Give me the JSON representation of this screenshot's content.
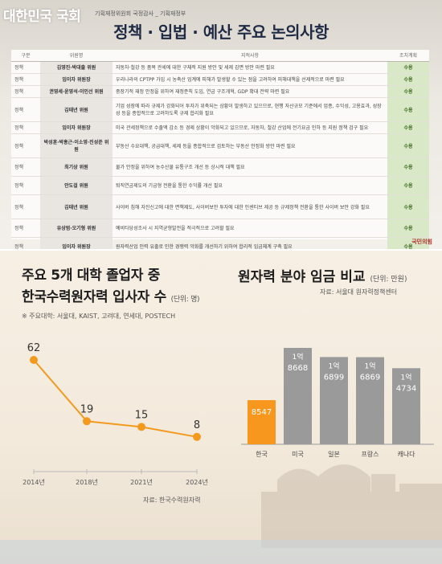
{
  "top": {
    "watermark": "대한민국 국회",
    "subtitle": "기획재정위원회 국정감사 _ 기획재정부",
    "title": "정책 · 입법 · 예산 주요 논의사항",
    "headers": [
      "구분",
      "위원명",
      "지적사항",
      "조치계획"
    ],
    "rows": [
      {
        "cat": "정책",
        "member": "김영진·박대출 위원",
        "remark": "자동차·철강 등 품목 관세에 대한 구체적 지원 방안 및 세제 감면 방안 마련 필요",
        "action": "수용",
        "h": "h1"
      },
      {
        "cat": "정책",
        "member": "임이자 위원장",
        "remark": "우리나라의 CPTPP 가입 시 농축산 업계에 피해가 발생할 수 있는 점을 고려하여 피해대책을 선제적으로 마련 필요",
        "action": "수용",
        "h": "h1"
      },
      {
        "cat": "정책",
        "member": "권영세·윤영석·이인선 위원",
        "remark": "중장기적 재정 안정을 위하여 재정준칙 도입, 연금 구조개혁, GDP 확대 전략 마련 필요",
        "action": "수용",
        "h": "h1"
      },
      {
        "cat": "정책",
        "member": "김태년 위원",
        "remark": "기업 성장에 따라 규제가 강화되어 투자가 위축되는 상황이 발생하고 있으므로, 현행 자산규모 기준에서 업종, 수익성, 고용효과, 성장성 등을 종합적으로 고려하도록 규제 합리화 필요",
        "action": "수용",
        "h": "h3"
      },
      {
        "cat": "정책",
        "member": "임이자 위원장",
        "remark": "미국 관세정책으로 수출액 감소 등 경제 상황이 악화되고 있으므로, 자동차, 철강 산업에 전기요금 인하 등 지원 정책 검구 필요",
        "action": "수용",
        "h": "h1"
      },
      {
        "cat": "정책",
        "member": "박성훈·박홍근·이소영·진성준 위원",
        "remark": "부동산 수요대책, 공급대책, 세제 등을 종합적으로 검토하는 부동산 안정화 방안 마련 필요",
        "action": "수용",
        "h": "h3"
      },
      {
        "cat": "정책",
        "member": "최기상 위원",
        "remark": "물가 안정을 위하여 농수산물 유통구조 개선 등 상시적 대책 필요",
        "action": "수용",
        "h": "h2"
      },
      {
        "cat": "정책",
        "member": "안도걸 위원",
        "remark": "퇴직연금제도의 기금형 전환을 통한 수익률 개선 필요",
        "action": "수용",
        "h": "h2"
      },
      {
        "cat": "정책",
        "member": "김태년 위원",
        "remark": "사이버 침해 자진신고에 대한 면책제도, 사이버보안 투자에 대한 인센티브 제공 등 규제정책 전환을 통한 사이버 보안 강화 필요",
        "action": "수용",
        "h": "h3"
      },
      {
        "cat": "정책",
        "member": "유상범·오기형 위원",
        "remark": "예비타당성조사 시 지역균형발전을 적극적으로 고려할 필요",
        "action": "수용",
        "h": "h2"
      },
      {
        "cat": "정책",
        "member": "임이자 위원장",
        "remark": "원자력산업 인력 유출로 인한 경쟁력 악화를 개선하기 위하여 합리적 임금체계 구축 필요",
        "action": "수용",
        "h": "h2"
      }
    ],
    "logo": "국민의힘"
  },
  "left": {
    "title_line1": "주요 5개 대학 졸업자 중",
    "title_line2": "한국수력원자력 입사자 수",
    "unit": "(단위: 명)",
    "note": "※ 주요대학: 서울대, KAIST, 고려대, 연세대, POSTECH",
    "source": "자료: 한국수력원자력"
  },
  "right": {
    "title": "원자력 분야 임금 비교",
    "unit": "(단위: 만원)",
    "source": "자료: 서울대 원자력정책센터"
  },
  "chart_data": [
    {
      "type": "line",
      "categories": [
        "2014년",
        "2018년",
        "2021년",
        "2024년"
      ],
      "series": [
        {
          "values": [
            62,
            19,
            15,
            8
          ]
        }
      ],
      "data_labels": [
        "62",
        "19",
        "15",
        "8"
      ],
      "color": "#f39a1e"
    },
    {
      "type": "bar",
      "categories": [
        "한국",
        "미국",
        "일본",
        "프랑스",
        "캐나다"
      ],
      "values": [
        8547,
        18668,
        16899,
        16869,
        14734
      ],
      "data_labels": [
        [
          "8547"
        ],
        [
          "1억",
          "8668"
        ],
        [
          "1억",
          "6899"
        ],
        [
          "1억",
          "6869"
        ],
        [
          "1억",
          "4734"
        ]
      ],
      "highlight_color": "#f7971d",
      "bar_color": "#9a9a9a"
    }
  ]
}
